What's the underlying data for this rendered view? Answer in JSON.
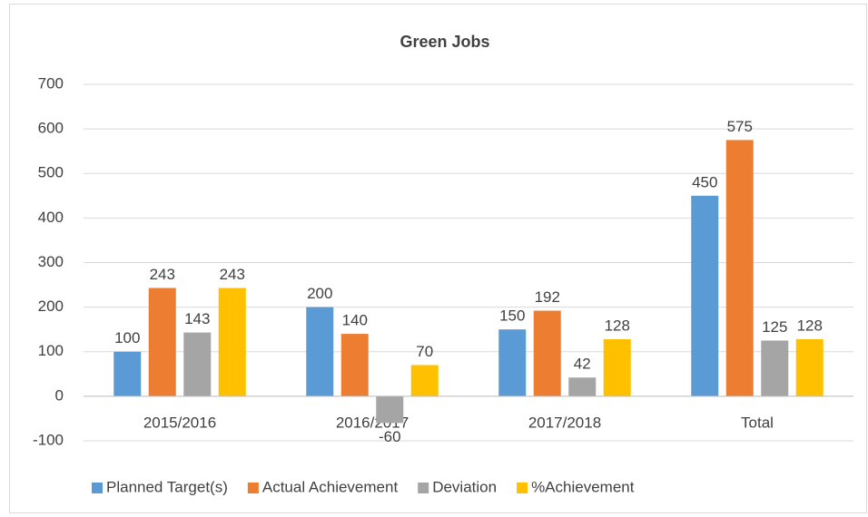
{
  "chart_data": {
    "type": "bar",
    "title": "Green Jobs",
    "categories": [
      "2015/2016",
      "2016/2017",
      "2017/2018",
      "Total"
    ],
    "series": [
      {
        "name": "Planned Target(s)",
        "color": "#5b9bd5",
        "values": [
          100,
          200,
          150,
          450
        ]
      },
      {
        "name": "Actual Achievement",
        "color": "#ed7d31",
        "values": [
          243,
          140,
          192,
          575
        ]
      },
      {
        "name": "Deviation",
        "color": "#a5a5a5",
        "values": [
          143,
          -60,
          42,
          125
        ]
      },
      {
        "name": "%Achievement",
        "color": "#ffc000",
        "values": [
          243,
          70,
          128,
          128
        ]
      }
    ],
    "ylim": [
      -100,
      700
    ],
    "yticks": [
      -100,
      0,
      100,
      200,
      300,
      400,
      500,
      600,
      700
    ],
    "grid": true,
    "legend": "bottom"
  }
}
